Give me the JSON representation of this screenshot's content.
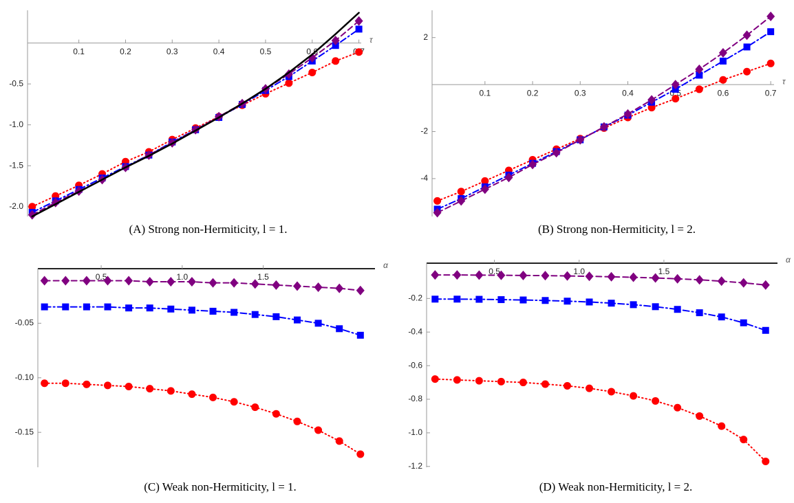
{
  "chart_data": [
    {
      "type": "line",
      "caption": "(A) Strong non-Hermiticity, l = 1.",
      "x_label": "τ",
      "x": [
        0,
        0.05,
        0.1,
        0.15,
        0.2,
        0.25,
        0.3,
        0.35,
        0.4,
        0.45,
        0.5,
        0.55,
        0.6,
        0.65,
        0.7
      ],
      "xlim": [
        -0.01,
        0.705
      ],
      "ylim": [
        -2.12,
        0.4
      ],
      "xticks": [
        0.1,
        0.2,
        0.3,
        0.4,
        0.5,
        0.6,
        0.7
      ],
      "yticks": [
        -0.5,
        {
          "value": -1,
          "label": "-1.0"
        },
        -1.5,
        {
          "value": -2,
          "label": "-2.0"
        }
      ],
      "series": [
        {
          "color": "#ff0000",
          "marker": "circle",
          "dash": "dotted",
          "values": [
            -2.0,
            -1.87,
            -1.74,
            -1.6,
            -1.45,
            -1.33,
            -1.18,
            -1.04,
            -0.9,
            -0.76,
            -0.62,
            -0.49,
            -0.36,
            -0.22,
            -0.11
          ]
        },
        {
          "color": "#0000ff",
          "marker": "square",
          "dash": "dashdot",
          "values": [
            -2.07,
            -1.93,
            -1.79,
            -1.65,
            -1.51,
            -1.37,
            -1.21,
            -1.06,
            -0.91,
            -0.75,
            -0.58,
            -0.41,
            -0.22,
            -0.03,
            0.17
          ]
        },
        {
          "color": "#800080",
          "marker": "diamond",
          "dash": "dashed",
          "values": [
            -2.1,
            -1.95,
            -1.81,
            -1.67,
            -1.52,
            -1.37,
            -1.22,
            -1.06,
            -0.9,
            -0.74,
            -0.56,
            -0.38,
            -0.18,
            0.03,
            0.27
          ]
        },
        {
          "color": "#000000",
          "marker": "none",
          "dash": "solid",
          "values": [
            -2.12,
            -1.97,
            -1.82,
            -1.67,
            -1.52,
            -1.38,
            -1.23,
            -1.07,
            -0.91,
            -0.74,
            -0.56,
            -0.36,
            -0.14,
            0.11,
            0.37
          ]
        }
      ]
    },
    {
      "type": "line",
      "caption": "(B) Strong non-Hermiticity, l = 2.",
      "x_label": "τ",
      "x": [
        0,
        0.05,
        0.1,
        0.15,
        0.2,
        0.25,
        0.3,
        0.35,
        0.4,
        0.45,
        0.5,
        0.55,
        0.6,
        0.65,
        0.7
      ],
      "xlim": [
        -0.011,
        0.707
      ],
      "ylim": [
        -5.61,
        3.16
      ],
      "xticks": [
        0.1,
        0.2,
        0.3,
        0.4,
        0.5,
        0.6,
        0.7
      ],
      "yticks": [
        2,
        -2,
        -4
      ],
      "series": [
        {
          "color": "#ff0000",
          "marker": "circle",
          "dash": "dotted",
          "values": [
            -4.95,
            -4.55,
            -4.1,
            -3.65,
            -3.2,
            -2.75,
            -2.3,
            -1.85,
            -1.4,
            -0.98,
            -0.6,
            -0.2,
            0.2,
            0.55,
            0.9
          ]
        },
        {
          "color": "#0000ff",
          "marker": "square",
          "dash": "dashdot",
          "values": [
            -5.3,
            -4.85,
            -4.35,
            -3.85,
            -3.35,
            -2.85,
            -2.35,
            -1.8,
            -1.3,
            -0.75,
            -0.2,
            0.4,
            1.0,
            1.6,
            2.25
          ]
        },
        {
          "color": "#800080",
          "marker": "diamond",
          "dash": "dashed",
          "values": [
            -5.45,
            -4.95,
            -4.45,
            -3.95,
            -3.4,
            -2.9,
            -2.35,
            -1.8,
            -1.25,
            -0.65,
            0.0,
            0.65,
            1.35,
            2.1,
            2.9
          ]
        }
      ]
    },
    {
      "type": "line",
      "caption": "(C) Weak non-Hermiticity, l = 1.",
      "x_label": "α",
      "x": [
        0.15,
        0.28,
        0.41,
        0.54,
        0.67,
        0.8,
        0.93,
        1.06,
        1.19,
        1.32,
        1.45,
        1.58,
        1.71,
        1.84,
        1.97,
        2.1
      ],
      "xlim": [
        0.109,
        2.19
      ],
      "ylim": [
        -0.182,
        0
      ],
      "xticks": [
        0.5,
        {
          "value": 1,
          "label": "1.0"
        },
        1.5
      ],
      "yticks": [
        -0.05,
        {
          "value": -0.1,
          "label": "-0.10"
        },
        -0.15
      ],
      "series": [
        {
          "color": "#ff0000",
          "marker": "circle",
          "dash": "dotted",
          "values": [
            -0.105,
            -0.105,
            -0.106,
            -0.107,
            -0.108,
            -0.11,
            -0.112,
            -0.115,
            -0.118,
            -0.122,
            -0.127,
            -0.133,
            -0.14,
            -0.148,
            -0.158,
            -0.17
          ]
        },
        {
          "color": "#0000ff",
          "marker": "square",
          "dash": "dashdot",
          "values": [
            -0.035,
            -0.035,
            -0.035,
            -0.035,
            -0.036,
            -0.036,
            -0.037,
            -0.038,
            -0.039,
            -0.04,
            -0.042,
            -0.044,
            -0.047,
            -0.05,
            -0.055,
            -0.061
          ]
        },
        {
          "color": "#800080",
          "marker": "diamond",
          "dash": "dashed",
          "values": [
            -0.011,
            -0.011,
            -0.011,
            -0.011,
            -0.011,
            -0.012,
            -0.012,
            -0.012,
            -0.013,
            -0.013,
            -0.014,
            -0.015,
            -0.016,
            -0.017,
            -0.018,
            -0.02
          ]
        }
      ]
    },
    {
      "type": "line",
      "caption": "(D) Weak non-Hermiticity, l = 2.",
      "x_label": "α",
      "x": [
        0.15,
        0.28,
        0.41,
        0.54,
        0.67,
        0.8,
        0.93,
        1.06,
        1.19,
        1.32,
        1.45,
        1.58,
        1.71,
        1.84,
        1.97,
        2.1
      ],
      "xlim": [
        0.1,
        2.17
      ],
      "ylim": [
        -1.205,
        0.01
      ],
      "xticks": [
        0.5,
        {
          "value": 1,
          "label": "1.0"
        },
        1.5
      ],
      "yticks": [
        -0.2,
        -0.4,
        -0.6,
        -0.8,
        {
          "value": -1,
          "label": "-1.0"
        },
        -1.2
      ],
      "series": [
        {
          "color": "#ff0000",
          "marker": "circle",
          "dash": "dotted",
          "values": [
            -0.68,
            -0.685,
            -0.69,
            -0.695,
            -0.7,
            -0.71,
            -0.72,
            -0.735,
            -0.755,
            -0.78,
            -0.81,
            -0.85,
            -0.9,
            -0.96,
            -1.04,
            -1.17
          ]
        },
        {
          "color": "#0000ff",
          "marker": "square",
          "dash": "dashdot",
          "values": [
            -0.204,
            -0.204,
            -0.205,
            -0.207,
            -0.209,
            -0.212,
            -0.216,
            -0.221,
            -0.228,
            -0.237,
            -0.249,
            -0.265,
            -0.285,
            -0.31,
            -0.345,
            -0.39
          ]
        },
        {
          "color": "#800080",
          "marker": "diamond",
          "dash": "dashed",
          "values": [
            -0.06,
            -0.06,
            -0.061,
            -0.062,
            -0.063,
            -0.064,
            -0.066,
            -0.068,
            -0.071,
            -0.074,
            -0.078,
            -0.083,
            -0.089,
            -0.097,
            -0.107,
            -0.12
          ]
        }
      ]
    }
  ]
}
